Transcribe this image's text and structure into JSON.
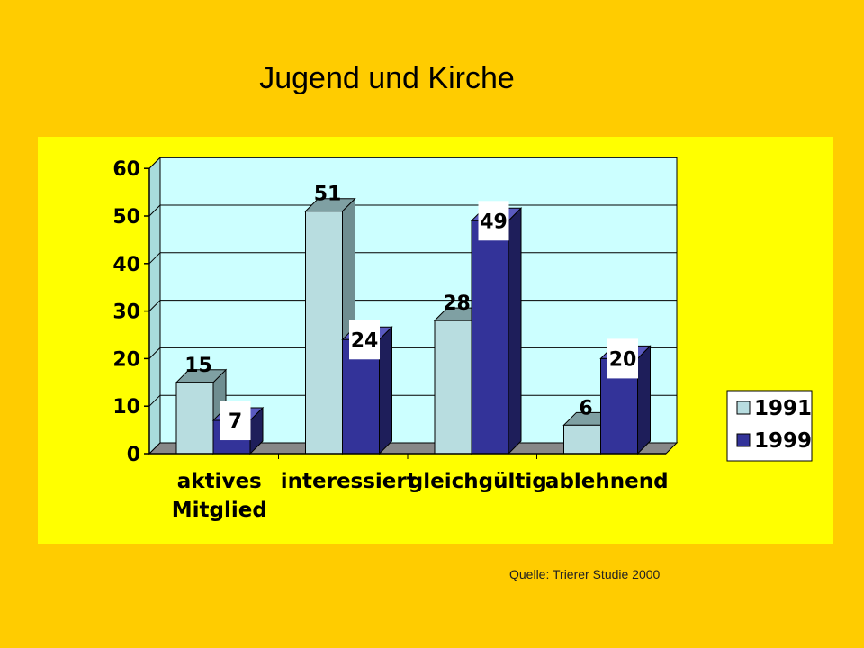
{
  "colors": {
    "background": "#FFCC00",
    "panel": "#FFFF00",
    "plot_area": "#CCFFFF",
    "series_1991": "#B8DDE0",
    "series_1999": "#333399"
  },
  "chart_data": {
    "type": "bar",
    "title": "Jugend und Kirche",
    "categories": [
      [
        "aktives",
        "Mitglied"
      ],
      [
        "interessiert"
      ],
      [
        "gleichgültig"
      ],
      [
        "ablehnend"
      ]
    ],
    "series": [
      {
        "name": "1991",
        "values": [
          15,
          51,
          28,
          6
        ]
      },
      {
        "name": "1999",
        "values": [
          7,
          24,
          49,
          20
        ]
      }
    ],
    "ylim": [
      0,
      60
    ],
    "yticks": [
      0,
      10,
      20,
      30,
      40,
      50,
      60
    ],
    "grid": true,
    "legend_position": "right",
    "three_d": true
  },
  "source_note": "Quelle: Trierer  Studie 2000"
}
